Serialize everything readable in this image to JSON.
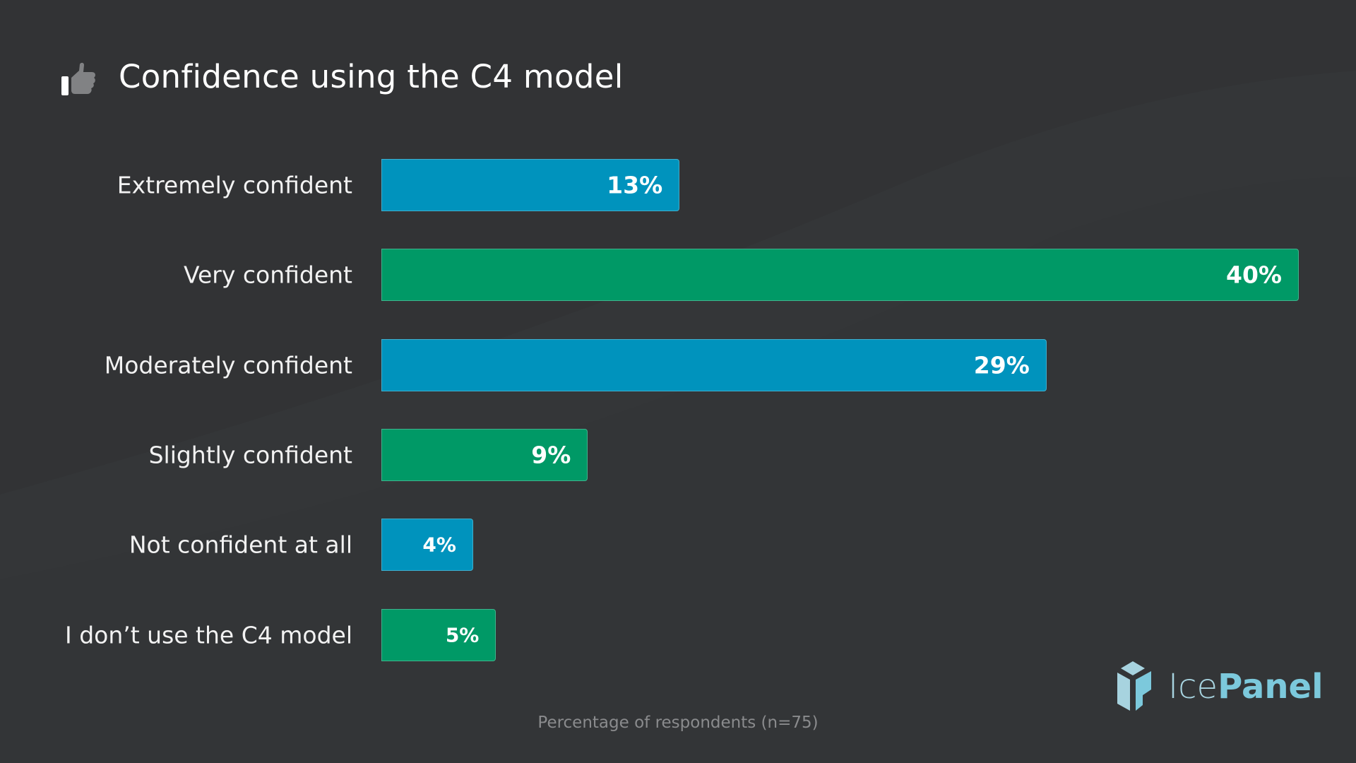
{
  "colors": {
    "blue": "#0093bd",
    "green": "#009966",
    "background": "#323335"
  },
  "title_icon": "thumbs-up-icon",
  "logo": {
    "ice": "Ice",
    "panel": "Panel"
  },
  "chart_data": {
    "type": "bar",
    "orientation": "horizontal",
    "title": "Confidence using the C4 model",
    "categories": [
      "Extremely confident",
      "Very confident",
      "Moderately confident",
      "Slightly confident",
      "Not confident at all",
      "I don’t use the C4 model"
    ],
    "values": [
      13,
      40,
      29,
      9,
      4,
      5
    ],
    "data_labels": [
      "13%",
      "40%",
      "29%",
      "9%",
      "4%",
      "5%"
    ],
    "bar_colors": [
      "blue",
      "green",
      "blue",
      "green",
      "blue",
      "green"
    ],
    "xlim": [
      0,
      40
    ],
    "grid": false,
    "caption": "Percentage of respondents (n=75)"
  }
}
